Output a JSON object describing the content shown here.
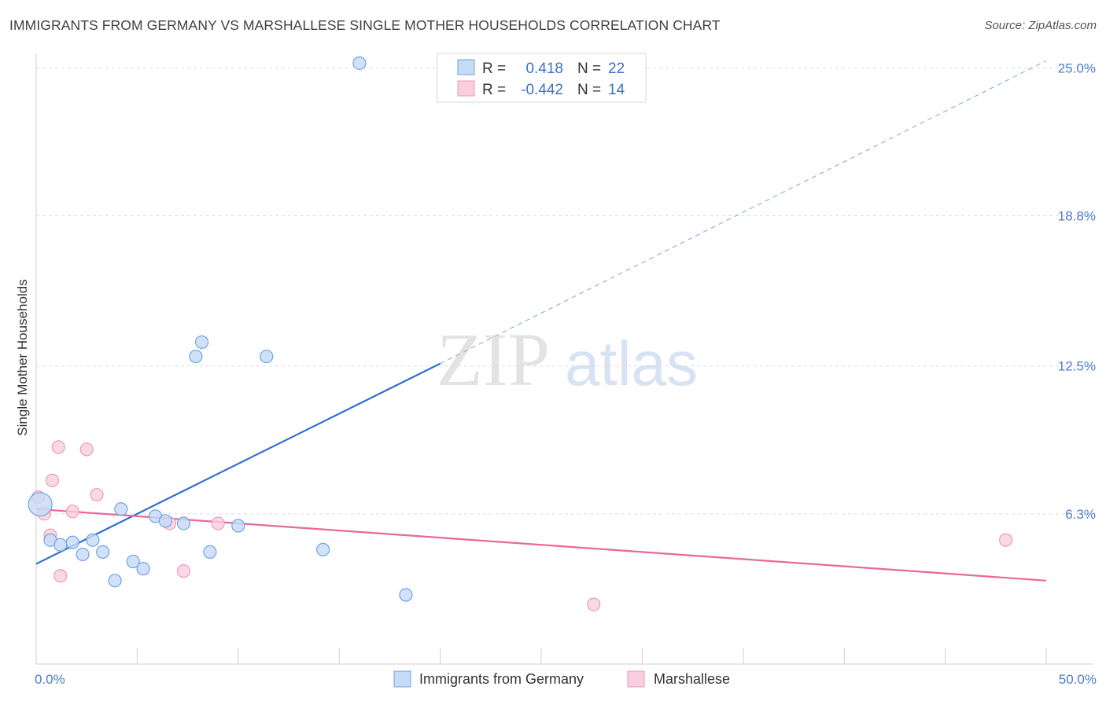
{
  "title": "IMMIGRANTS FROM GERMANY VS MARSHALLESE SINGLE MOTHER HOUSEHOLDS CORRELATION CHART",
  "source": "Source: ZipAtlas.com",
  "watermark": {
    "zip": "ZIP",
    "atlas": "atlas"
  },
  "chart_data": {
    "type": "scatter",
    "ylabel": "Single Mother Households",
    "xlim": [
      0,
      50
    ],
    "ylim": [
      0,
      26.2
    ],
    "x_tick_labels": [
      "0.0%",
      "50.0%"
    ],
    "y_ticks": [
      6.3,
      12.5,
      18.8,
      25.0
    ],
    "y_tick_labels": [
      "6.3%",
      "12.5%",
      "18.8%",
      "25.0%"
    ],
    "grid": true,
    "legend": {
      "placement": "top-center",
      "entries": [
        {
          "r_label": "R =",
          "r_value": "0.418",
          "n_label": "N =",
          "n_value": "22"
        },
        {
          "r_label": "R =",
          "r_value": "-0.442",
          "n_label": "N =",
          "n_value": "14"
        }
      ]
    },
    "series": [
      {
        "name": "Immigrants from Germany",
        "color": "#6fa3e6",
        "fill": "#c6dbf6",
        "trend_color": "#2e6fd2",
        "trend": {
          "x0": 0,
          "y0": 4.2,
          "x1": 20,
          "y1": 12.6,
          "dashed_to_x": 50,
          "dashed_to_y": 25.3
        },
        "points": [
          {
            "x": 0.2,
            "y": 6.7,
            "big": true
          },
          {
            "x": 0.7,
            "y": 5.2
          },
          {
            "x": 1.2,
            "y": 5.0
          },
          {
            "x": 1.8,
            "y": 5.1
          },
          {
            "x": 2.3,
            "y": 4.6
          },
          {
            "x": 2.8,
            "y": 5.2
          },
          {
            "x": 3.3,
            "y": 4.7
          },
          {
            "x": 3.9,
            "y": 3.5
          },
          {
            "x": 4.2,
            "y": 6.5
          },
          {
            "x": 4.8,
            "y": 4.3
          },
          {
            "x": 5.3,
            "y": 4.0
          },
          {
            "x": 5.9,
            "y": 6.2
          },
          {
            "x": 6.4,
            "y": 6.0
          },
          {
            "x": 7.3,
            "y": 5.9
          },
          {
            "x": 7.9,
            "y": 12.9
          },
          {
            "x": 8.2,
            "y": 13.5
          },
          {
            "x": 8.6,
            "y": 4.7
          },
          {
            "x": 10.0,
            "y": 5.8
          },
          {
            "x": 11.4,
            "y": 12.9
          },
          {
            "x": 14.2,
            "y": 4.8
          },
          {
            "x": 16.0,
            "y": 25.2
          },
          {
            "x": 18.3,
            "y": 2.9
          }
        ]
      },
      {
        "name": "Marshallese",
        "color": "#f09ab6",
        "fill": "#f9cede",
        "trend_color": "#e8689a",
        "trend": {
          "x0": 0,
          "y0": 6.5,
          "x1": 50,
          "y1": 3.5
        },
        "points": [
          {
            "x": 0.1,
            "y": 7.0
          },
          {
            "x": 0.4,
            "y": 6.3
          },
          {
            "x": 0.7,
            "y": 5.4
          },
          {
            "x": 0.8,
            "y": 7.7
          },
          {
            "x": 1.1,
            "y": 9.1
          },
          {
            "x": 1.2,
            "y": 3.7
          },
          {
            "x": 1.8,
            "y": 6.4
          },
          {
            "x": 2.5,
            "y": 9.0
          },
          {
            "x": 3.0,
            "y": 7.1
          },
          {
            "x": 6.6,
            "y": 5.9
          },
          {
            "x": 7.3,
            "y": 3.9
          },
          {
            "x": 9.0,
            "y": 5.9
          },
          {
            "x": 27.6,
            "y": 2.5
          },
          {
            "x": 48.0,
            "y": 5.2
          }
        ]
      }
    ]
  }
}
